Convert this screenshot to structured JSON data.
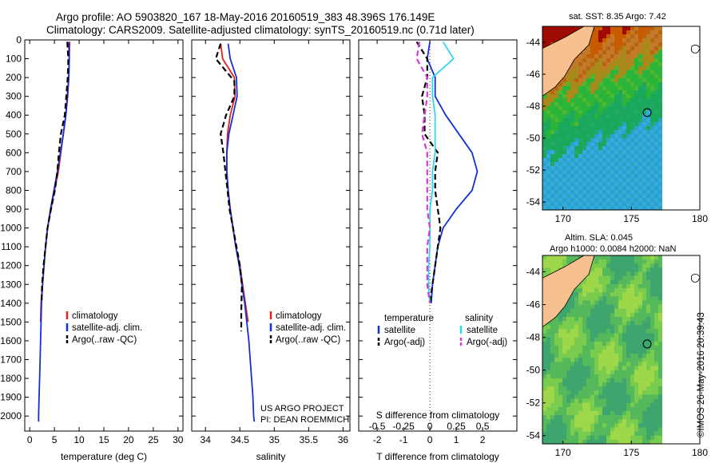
{
  "header": {
    "line1": "Argo profile: AO 5903820_167 18-May-2016 20160519_383 48.396S 176.149E",
    "line2": "Climatology: CARS2009. Satellite-adjusted climatology: synTS_20160519.nc (0.71d later)"
  },
  "colors": {
    "climatology": "#e0221c",
    "satellite": "#1230d8",
    "argo": "#000000",
    "sal_satellite": "#33d6ee",
    "sal_argo": "#d838d8"
  },
  "chart_data": [
    {
      "type": "line",
      "name": "temperature-profile",
      "xlabel": "temperature (deg C)",
      "xlim": [
        -1,
        31
      ],
      "xticks": [
        0,
        5,
        10,
        15,
        20,
        25,
        30
      ],
      "ylim": [
        0,
        2080
      ],
      "yticks": [
        0,
        100,
        200,
        300,
        400,
        500,
        600,
        700,
        800,
        900,
        1000,
        1100,
        1200,
        1300,
        1400,
        1500,
        1600,
        1700,
        1800,
        1900,
        2000
      ],
      "legend": {
        "items": [
          "climatology",
          "satellite-adj. clim.",
          "Argo(..raw -QC)"
        ],
        "placement": "lower-center"
      },
      "series": [
        {
          "name": "climatology",
          "color": "#e0221c",
          "dash": "",
          "x": [
            8.1,
            8.0,
            7.9,
            7.7,
            7.3,
            6.8,
            6.3,
            5.8,
            5.0,
            4.3,
            3.6,
            3.2,
            2.9,
            2.6,
            2.3,
            2.2
          ],
          "y": [
            10,
            100,
            200,
            300,
            400,
            500,
            600,
            700,
            800,
            900,
            1000,
            1100,
            1200,
            1300,
            1400,
            1500
          ]
        },
        {
          "name": "satellite-adj. clim.",
          "color": "#1230d8",
          "dash": "",
          "x": [
            7.9,
            8.0,
            7.9,
            7.6,
            7.3,
            6.8,
            6.2,
            5.6,
            4.9,
            4.2,
            3.6,
            3.2,
            2.9,
            2.6,
            2.4,
            2.3,
            2.2,
            2.1,
            2.0,
            1.9,
            1.8,
            1.8
          ],
          "y": [
            10,
            100,
            200,
            300,
            400,
            500,
            600,
            700,
            800,
            900,
            1000,
            1100,
            1200,
            1300,
            1400,
            1500,
            1600,
            1700,
            1800,
            1900,
            2000,
            2030
          ]
        },
        {
          "name": "Argo(..raw -QC)",
          "color": "#000000",
          "dash": "7,4",
          "x": [
            7.6,
            7.8,
            7.7,
            7.4,
            7.1,
            6.3,
            5.9,
            5.6,
            5.1,
            4.3,
            3.6,
            3.2,
            2.8,
            2.5,
            2.4
          ],
          "y": [
            10,
            100,
            200,
            300,
            400,
            500,
            600,
            700,
            800,
            900,
            1000,
            1100,
            1200,
            1300,
            1400
          ]
        }
      ]
    },
    {
      "type": "line",
      "name": "salinity-profile",
      "xlabel": "salinity",
      "xlim": [
        33.8,
        36.1
      ],
      "xticks": [
        34,
        34.5,
        35,
        35.5,
        36
      ],
      "ylim": [
        0,
        2080
      ],
      "legend": {
        "items": [
          "climatology",
          "satellite-adj. clim.",
          "Argo(..raw -QC)"
        ],
        "placement": "lower-center"
      },
      "annotations": [
        "US ARGO PROJECT",
        "PI: DEAN ROEMMICH"
      ],
      "series": [
        {
          "name": "climatology",
          "color": "#e0221c",
          "dash": "",
          "x": [
            34.22,
            34.25,
            34.42,
            34.43,
            34.36,
            34.32,
            34.31,
            34.31,
            34.33,
            34.36,
            34.4,
            34.44,
            34.5,
            34.54,
            34.58,
            34.62
          ],
          "y": [
            20,
            100,
            200,
            300,
            400,
            500,
            600,
            700,
            800,
            900,
            1000,
            1100,
            1200,
            1300,
            1400,
            1500
          ]
        },
        {
          "name": "satellite-adj. clim.",
          "color": "#1230d8",
          "dash": "",
          "x": [
            34.33,
            34.36,
            34.45,
            34.46,
            34.4,
            34.34,
            34.31,
            34.31,
            34.33,
            34.36,
            34.4,
            34.44,
            34.49,
            34.53,
            34.57,
            34.6,
            34.63,
            34.65,
            34.67,
            34.69,
            34.7,
            34.71
          ],
          "y": [
            20,
            100,
            200,
            300,
            400,
            500,
            600,
            700,
            800,
            900,
            1000,
            1100,
            1200,
            1300,
            1400,
            1500,
            1600,
            1700,
            1800,
            1900,
            2000,
            2030
          ]
        },
        {
          "name": "Argo(..raw -QC)",
          "color": "#000000",
          "dash": "7,4",
          "x": [
            34.22,
            34.15,
            34.42,
            34.42,
            34.3,
            34.22,
            34.26,
            34.29,
            34.32,
            34.35,
            34.4,
            34.45,
            34.5,
            34.53,
            34.52,
            34.52
          ],
          "y": [
            20,
            100,
            220,
            300,
            400,
            500,
            600,
            700,
            800,
            900,
            1000,
            1100,
            1200,
            1300,
            1450,
            1550
          ]
        }
      ]
    },
    {
      "type": "line",
      "name": "difference-profile",
      "xlabel": "T difference from climatology",
      "x2label": "S difference from climatology",
      "xlim": [
        -2.7,
        3.3
      ],
      "xticks": [
        -2,
        -1,
        0,
        1,
        2
      ],
      "x2ticks": [
        "-0.5",
        "-0.25",
        "0",
        "0.25",
        "0.5"
      ],
      "ylim": [
        0,
        2080
      ],
      "legend": {
        "groups": [
          "temperature",
          "salinity"
        ],
        "items": [
          "satellite",
          "Argo(-adj)",
          "satellite",
          "Argo(-adj)"
        ],
        "placement": "lower-center"
      },
      "series": [
        {
          "name": "temperature satellite",
          "color": "#1230d8",
          "dash": "",
          "x": [
            0,
            -0.1,
            0.2,
            0.2,
            0.6,
            1.1,
            1.6,
            1.8,
            1.6,
            1.0,
            0.5,
            0.3,
            0.2,
            0.1,
            0.05
          ],
          "y": [
            10,
            100,
            200,
            300,
            400,
            500,
            600,
            700,
            800,
            900,
            1000,
            1100,
            1200,
            1300,
            1400
          ]
        },
        {
          "name": "temperature Argo(-adj)",
          "color": "#000000",
          "dash": "7,4",
          "x": [
            -0.5,
            -0.1,
            -0.1,
            -0.3,
            -0.2,
            -0.2,
            0.3,
            0.2,
            0.2,
            0.3,
            0.4,
            0.3,
            0.2,
            0.1,
            0.0
          ],
          "y": [
            10,
            100,
            200,
            300,
            400,
            500,
            600,
            700,
            800,
            900,
            1000,
            1100,
            1200,
            1300,
            1400
          ]
        },
        {
          "name": "salinity satellite",
          "color": "#33d6ee",
          "dash": "",
          "x": [
            0.5,
            0.9,
            0.1,
            0.1,
            0.2,
            0.2,
            0.2,
            0.1,
            0.1,
            0.0,
            0.0,
            0.0,
            -0.05,
            -0.05,
            0.0
          ],
          "y": [
            10,
            100,
            200,
            300,
            400,
            500,
            600,
            700,
            800,
            900,
            1000,
            1100,
            1200,
            1300,
            1400
          ]
        },
        {
          "name": "salinity Argo(-adj)",
          "color": "#d838d8",
          "dash": "7,4",
          "x": [
            -0.4,
            -0.5,
            -0.1,
            -0.1,
            -0.2,
            -0.3,
            -0.1,
            -0.1,
            -0.1,
            -0.1,
            0.0,
            -0.1,
            -0.1,
            -0.1,
            0.0
          ],
          "y": [
            10,
            100,
            200,
            300,
            400,
            500,
            600,
            700,
            800,
            900,
            1000,
            1100,
            1200,
            1300,
            1400
          ]
        }
      ]
    },
    {
      "type": "heatmap",
      "name": "sst-map",
      "title": "sat. SST: 8.35 Argo: 7.42",
      "xlim": [
        168.5,
        180
      ],
      "xticks": [
        170,
        175,
        180
      ],
      "ylim": [
        -54.5,
        -43
      ],
      "yticks": [
        -44,
        -46,
        -48,
        -50,
        -52,
        -54
      ],
      "argo_position": [
        176.15,
        -48.4
      ]
    },
    {
      "type": "heatmap",
      "name": "sla-map",
      "title": "Altim. SLA: 0.045",
      "subtitle": "Argo h1000: 0.0084 h2000: NaN",
      "xlim": [
        168.5,
        180
      ],
      "xticks": [
        170,
        175,
        180
      ],
      "ylim": [
        -54.5,
        -43
      ],
      "yticks": [
        -44,
        -46,
        -48,
        -50,
        -52,
        -54
      ],
      "argo_position": [
        176.15,
        -48.4
      ]
    }
  ],
  "credit": "©IMOS 26-May-2016 20:39:43"
}
